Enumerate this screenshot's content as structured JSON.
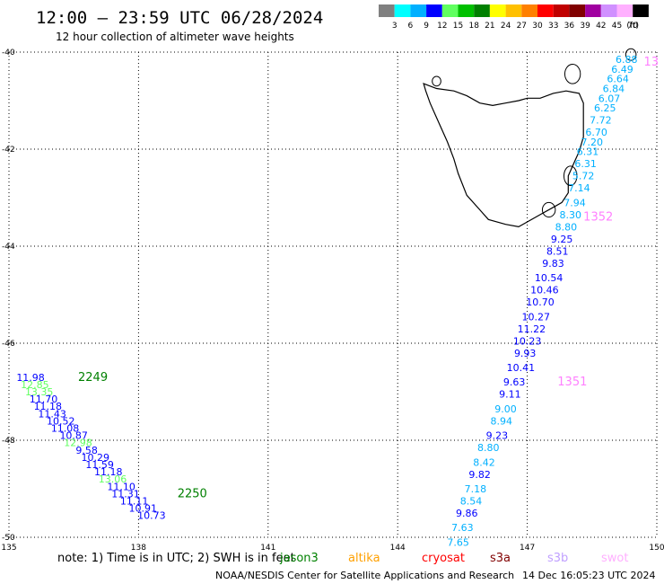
{
  "header": {
    "title": "12:00 – 23:59 UTC 06/28/2024",
    "subtitle": "12 hour collection of altimeter wave heights"
  },
  "colorbar": {
    "labels": [
      "3",
      "6",
      "9",
      "12",
      "15",
      "18",
      "21",
      "24",
      "27",
      "30",
      "33",
      "36",
      "39",
      "42",
      "45",
      "70",
      "(ft)"
    ],
    "colors": [
      "#808080",
      "#00ffff",
      "#00b0ff",
      "#0000ff",
      "#60ff60",
      "#00c000",
      "#008000",
      "#ffff00",
      "#ffc000",
      "#ff8000",
      "#ff0000",
      "#c00000",
      "#800000",
      "#a000a0",
      "#d090ff",
      "#ffb0ff",
      "#000000"
    ]
  },
  "map": {
    "lon_ticks": [
      "135",
      "138",
      "141",
      "144",
      "147",
      "150"
    ],
    "lat_ticks": [
      "-40",
      "-42",
      "-44",
      "-46",
      "-48",
      "-50"
    ],
    "lon_range": [
      135,
      150
    ],
    "lat_range": [
      -50,
      -40
    ],
    "grid": true
  },
  "passes": [
    {
      "id": "2249",
      "color": "#008000",
      "lon": 136.6,
      "lat": -46.7
    },
    {
      "id": "2250",
      "color": "#008000",
      "lon": 138.9,
      "lat": -49.1
    },
    {
      "id": "1352",
      "color": "#ff80ff",
      "lon": 148.3,
      "lat": -43.4
    },
    {
      "id": "1351",
      "color": "#ff80ff",
      "lon": 147.7,
      "lat": -46.8
    },
    {
      "id": "13",
      "color": "#ff80ff",
      "lon": 149.7,
      "lat": -40.2
    }
  ],
  "tracks": [
    {
      "name": "west",
      "points": [
        {
          "lon": 135.5,
          "lat": -46.7,
          "v": "11.98",
          "c": "#0000ff"
        },
        {
          "lon": 135.6,
          "lat": -46.85,
          "v": "12.85",
          "c": "#60ff60"
        },
        {
          "lon": 135.7,
          "lat": -47.0,
          "v": "13.35",
          "c": "#60ff60"
        },
        {
          "lon": 135.8,
          "lat": -47.15,
          "v": "11.70",
          "c": "#0000ff"
        },
        {
          "lon": 135.9,
          "lat": -47.3,
          "v": "11.18",
          "c": "#0000ff"
        },
        {
          "lon": 136.0,
          "lat": -47.45,
          "v": "11.43",
          "c": "#0000ff"
        },
        {
          "lon": 136.2,
          "lat": -47.6,
          "v": "10.52",
          "c": "#0000ff"
        },
        {
          "lon": 136.3,
          "lat": -47.75,
          "v": "11.08",
          "c": "#0000ff"
        },
        {
          "lon": 136.5,
          "lat": -47.9,
          "v": "10.87",
          "c": "#0000ff"
        },
        {
          "lon": 136.6,
          "lat": -48.05,
          "v": "12.98",
          "c": "#60ff60"
        },
        {
          "lon": 136.8,
          "lat": -48.2,
          "v": "9.58",
          "c": "#0000ff"
        },
        {
          "lon": 137.0,
          "lat": -48.35,
          "v": "10.29",
          "c": "#0000ff"
        },
        {
          "lon": 137.1,
          "lat": -48.5,
          "v": "11.59",
          "c": "#0000ff"
        },
        {
          "lon": 137.3,
          "lat": -48.65,
          "v": "11.18",
          "c": "#0000ff"
        },
        {
          "lon": 137.4,
          "lat": -48.8,
          "v": "13.06",
          "c": "#60ff60"
        },
        {
          "lon": 137.6,
          "lat": -48.95,
          "v": "11.10",
          "c": "#0000ff"
        },
        {
          "lon": 137.7,
          "lat": -49.1,
          "v": "11.31",
          "c": "#0000ff"
        },
        {
          "lon": 137.9,
          "lat": -49.25,
          "v": "11.11",
          "c": "#0000ff"
        },
        {
          "lon": 138.1,
          "lat": -49.4,
          "v": "10.91",
          "c": "#0000ff"
        },
        {
          "lon": 138.3,
          "lat": -49.55,
          "v": "10.73",
          "c": "#0000ff"
        }
      ]
    },
    {
      "name": "east",
      "points": [
        {
          "lon": 149.3,
          "lat": -40.15,
          "v": "6.88",
          "c": "#00b0ff"
        },
        {
          "lon": 149.2,
          "lat": -40.35,
          "v": "6.49",
          "c": "#00b0ff"
        },
        {
          "lon": 149.1,
          "lat": -40.55,
          "v": "6.64",
          "c": "#00b0ff"
        },
        {
          "lon": 149.0,
          "lat": -40.75,
          "v": "6.84",
          "c": "#00b0ff"
        },
        {
          "lon": 148.9,
          "lat": -40.95,
          "v": "6.07",
          "c": "#00b0ff"
        },
        {
          "lon": 148.8,
          "lat": -41.15,
          "v": "6.25",
          "c": "#00b0ff"
        },
        {
          "lon": 148.7,
          "lat": -41.4,
          "v": "7.72",
          "c": "#00b0ff"
        },
        {
          "lon": 148.6,
          "lat": -41.65,
          "v": "6.70",
          "c": "#00b0ff"
        },
        {
          "lon": 148.5,
          "lat": -41.85,
          "v": "7.20",
          "c": "#00b0ff"
        },
        {
          "lon": 148.4,
          "lat": -42.05,
          "v": "6.31",
          "c": "#00b0ff"
        },
        {
          "lon": 148.35,
          "lat": -42.3,
          "v": "6.31",
          "c": "#00b0ff"
        },
        {
          "lon": 148.3,
          "lat": -42.55,
          "v": "5.72",
          "c": "#00b0ff"
        },
        {
          "lon": 148.2,
          "lat": -42.8,
          "v": "7.14",
          "c": "#00b0ff"
        },
        {
          "lon": 148.1,
          "lat": -43.1,
          "v": "7.94",
          "c": "#00b0ff"
        },
        {
          "lon": 148.0,
          "lat": -43.35,
          "v": "8.30",
          "c": "#00b0ff"
        },
        {
          "lon": 147.9,
          "lat": -43.6,
          "v": "8.80",
          "c": "#00b0ff"
        },
        {
          "lon": 147.8,
          "lat": -43.85,
          "v": "9.25",
          "c": "#0000ff"
        },
        {
          "lon": 147.7,
          "lat": -44.1,
          "v": "8.51",
          "c": "#0000ff"
        },
        {
          "lon": 147.6,
          "lat": -44.35,
          "v": "9.83",
          "c": "#0000ff"
        },
        {
          "lon": 147.5,
          "lat": -44.65,
          "v": "10.54",
          "c": "#0000ff"
        },
        {
          "lon": 147.4,
          "lat": -44.9,
          "v": "10.46",
          "c": "#0000ff"
        },
        {
          "lon": 147.3,
          "lat": -45.15,
          "v": "10.70",
          "c": "#0000ff"
        },
        {
          "lon": 147.2,
          "lat": -45.45,
          "v": "10.27",
          "c": "#0000ff"
        },
        {
          "lon": 147.1,
          "lat": -45.7,
          "v": "11.22",
          "c": "#0000ff"
        },
        {
          "lon": 147.0,
          "lat": -45.95,
          "v": "10.23",
          "c": "#0000ff"
        },
        {
          "lon": 146.95,
          "lat": -46.2,
          "v": "9.93",
          "c": "#0000ff"
        },
        {
          "lon": 146.85,
          "lat": -46.5,
          "v": "10.41",
          "c": "#0000ff"
        },
        {
          "lon": 146.7,
          "lat": -46.8,
          "v": "9.63",
          "c": "#0000ff"
        },
        {
          "lon": 146.6,
          "lat": -47.05,
          "v": "9.11",
          "c": "#0000ff"
        },
        {
          "lon": 146.5,
          "lat": -47.35,
          "v": "9.00",
          "c": "#00b0ff"
        },
        {
          "lon": 146.4,
          "lat": -47.6,
          "v": "8.94",
          "c": "#00b0ff"
        },
        {
          "lon": 146.3,
          "lat": -47.9,
          "v": "9.23",
          "c": "#0000ff"
        },
        {
          "lon": 146.1,
          "lat": -48.15,
          "v": "8.80",
          "c": "#00b0ff"
        },
        {
          "lon": 146.0,
          "lat": -48.45,
          "v": "8.42",
          "c": "#00b0ff"
        },
        {
          "lon": 145.9,
          "lat": -48.7,
          "v": "9.82",
          "c": "#0000ff"
        },
        {
          "lon": 145.8,
          "lat": -49.0,
          "v": "7.18",
          "c": "#00b0ff"
        },
        {
          "lon": 145.7,
          "lat": -49.25,
          "v": "8.54",
          "c": "#00b0ff"
        },
        {
          "lon": 145.6,
          "lat": -49.5,
          "v": "9.86",
          "c": "#0000ff"
        },
        {
          "lon": 145.5,
          "lat": -49.8,
          "v": "7.63",
          "c": "#00b0ff"
        },
        {
          "lon": 145.4,
          "lat": -50.1,
          "v": "7.65",
          "c": "#00b0ff"
        }
      ]
    }
  ],
  "footer": {
    "note_prefix": "note: 1) Time is in UTC; 2) SWH is in feet",
    "satellites": [
      {
        "name": "jason3",
        "color": "#008000"
      },
      {
        "name": "altika",
        "color": "#ffa000"
      },
      {
        "name": "cryosat",
        "color": "#ff0000"
      },
      {
        "name": "s3a",
        "color": "#800000"
      },
      {
        "name": "s3b",
        "color": "#c0a0ff"
      },
      {
        "name": "swot",
        "color": "#ffb0ff"
      }
    ],
    "credit": "NOAA/NESDIS Center for Satellite Applications and Research",
    "timestamp": "14 Dec 16:05:23 UTC 2024"
  }
}
